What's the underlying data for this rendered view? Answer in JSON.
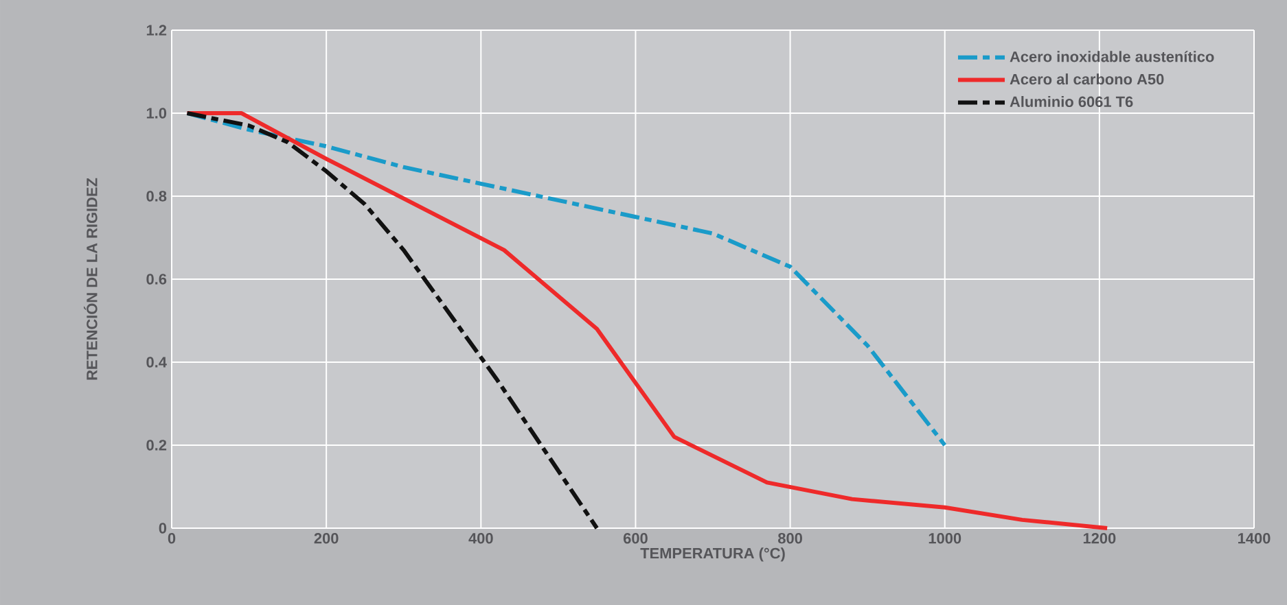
{
  "chart_data": {
    "type": "line",
    "xlabel": "TEMPERATURA (°C)",
    "ylabel": "RETENCIÓN DE LA RIGIDEZ",
    "xlim": [
      0,
      1400
    ],
    "ylim": [
      0,
      1.2
    ],
    "xticks": [
      0,
      200,
      400,
      600,
      800,
      1000,
      1200,
      1400
    ],
    "yticks": [
      {
        "value": 0,
        "label": "0"
      },
      0.2,
      0.4,
      0.6,
      0.8,
      {
        "value": 1.0,
        "label": "1.0"
      },
      1.2
    ],
    "grid": true,
    "legend": "top right",
    "series": [
      {
        "name": "Acero inoxidable austenítico",
        "color": "#1a9bc9",
        "line_style": "dashed",
        "x": [
          20,
          100,
          200,
          300,
          400,
          500,
          600,
          700,
          800,
          900,
          1000
        ],
        "values": [
          1.0,
          0.96,
          0.92,
          0.87,
          0.83,
          0.79,
          0.75,
          0.71,
          0.63,
          0.44,
          0.2
        ]
      },
      {
        "name": "Acero al carbono A50",
        "color": "#ee2a2a",
        "line_style": "solid",
        "x": [
          20,
          90,
          200,
          430,
          550,
          650,
          770,
          880,
          1000,
          1100,
          1210
        ],
        "values": [
          1.0,
          1.0,
          0.89,
          0.67,
          0.48,
          0.22,
          0.11,
          0.07,
          0.05,
          0.02,
          0.0
        ]
      },
      {
        "name": "Aluminio 6061 T6",
        "color": "#111111",
        "line_style": "dashed",
        "x": [
          20,
          100,
          150,
          200,
          250,
          300,
          420,
          550
        ],
        "values": [
          1.0,
          0.97,
          0.93,
          0.86,
          0.78,
          0.67,
          0.36,
          0.0
        ]
      }
    ]
  }
}
